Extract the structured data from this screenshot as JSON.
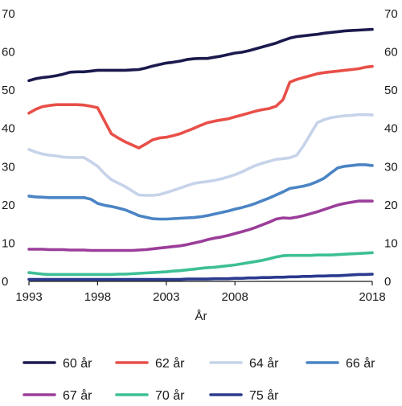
{
  "chart_data": {
    "type": "line",
    "xlabel": "År",
    "ylim": [
      0,
      70
    ],
    "yticks": [
      0,
      10,
      20,
      30,
      40,
      50,
      60,
      70
    ],
    "xticks": [
      1993,
      1998,
      2003,
      2008,
      2018
    ],
    "xrange": [
      1993,
      2018
    ],
    "grid": false,
    "legend_position": "bottom",
    "x": [
      1993,
      1993.5,
      1994,
      1994.5,
      1995,
      1995.5,
      1996,
      1996.5,
      1997,
      1997.5,
      1998,
      1998.5,
      1999,
      1999.5,
      2000,
      2000.5,
      2001,
      2001.5,
      2002,
      2002.5,
      2003,
      2003.5,
      2004,
      2004.5,
      2005,
      2005.5,
      2006,
      2006.5,
      2007,
      2007.5,
      2008,
      2008.5,
      2009,
      2009.5,
      2010,
      2010.5,
      2011,
      2011.5,
      2012,
      2012.5,
      2013,
      2013.5,
      2014,
      2014.5,
      2015,
      2015.5,
      2016,
      2016.5,
      2017,
      2017.5,
      2018
    ],
    "series": [
      {
        "name": "60 år",
        "color": "#1a1a4e",
        "values": [
          52.5,
          53,
          53.3,
          53.5,
          53.8,
          54.2,
          54.7,
          54.8,
          54.8,
          55,
          55.2,
          55.2,
          55.2,
          55.2,
          55.2,
          55.3,
          55.4,
          55.8,
          56.3,
          56.7,
          57.1,
          57.3,
          57.6,
          58,
          58.2,
          58.3,
          58.3,
          58.6,
          58.9,
          59.3,
          59.7,
          59.9,
          60.3,
          60.8,
          61.3,
          61.8,
          62.3,
          63,
          63.6,
          64,
          64.2,
          64.4,
          64.6,
          64.9,
          65.1,
          65.3,
          65.5,
          65.6,
          65.7,
          65.8,
          65.9
        ]
      },
      {
        "name": "62 år",
        "color": "#e84f48",
        "values": [
          44,
          45,
          45.7,
          46,
          46.2,
          46.2,
          46.2,
          46.2,
          46.1,
          45.8,
          45.4,
          42,
          38.6,
          37.5,
          36.5,
          35.7,
          34.9,
          35.9,
          37,
          37.5,
          37.7,
          38.1,
          38.6,
          39.3,
          40,
          40.8,
          41.5,
          41.9,
          42.2,
          42.5,
          43,
          43.5,
          44,
          44.5,
          44.9,
          45.2,
          45.8,
          47.5,
          52.1,
          52.8,
          53.3,
          53.8,
          54.3,
          54.6,
          54.8,
          55,
          55.2,
          55.4,
          55.6,
          56,
          56.2
        ]
      },
      {
        "name": "64 år",
        "color": "#c6d3ea",
        "values": [
          34.5,
          33.8,
          33.3,
          33,
          32.8,
          32.5,
          32.4,
          32.4,
          32.4,
          31.3,
          30.1,
          28.2,
          26.6,
          25.7,
          24.8,
          23.7,
          22.6,
          22.5,
          22.5,
          22.7,
          23.2,
          23.8,
          24.4,
          25,
          25.6,
          25.9,
          26.1,
          26.4,
          26.8,
          27.3,
          27.9,
          28.6,
          29.5,
          30.3,
          30.9,
          31.4,
          31.9,
          32.1,
          32.3,
          33,
          35.5,
          38.5,
          41.5,
          42.3,
          42.8,
          43.1,
          43.3,
          43.4,
          43.6,
          43.6,
          43.5
        ]
      },
      {
        "name": "66 år",
        "color": "#4a84c4",
        "values": [
          22.3,
          22.1,
          22,
          21.9,
          21.9,
          21.9,
          21.9,
          21.9,
          21.9,
          21.5,
          20.4,
          19.9,
          19.6,
          19.2,
          18.7,
          18,
          17.2,
          16.8,
          16.4,
          16.3,
          16.3,
          16.4,
          16.5,
          16.6,
          16.7,
          16.9,
          17.2,
          17.6,
          18,
          18.4,
          18.9,
          19.3,
          19.8,
          20.4,
          21.1,
          21.8,
          22.6,
          23.4,
          24.3,
          24.6,
          24.9,
          25.4,
          26.1,
          27,
          28.4,
          29.7,
          30.1,
          30.3,
          30.5,
          30.5,
          30.3
        ]
      },
      {
        "name": "67 år",
        "color": "#9b3d9a",
        "values": [
          8.4,
          8.4,
          8.4,
          8.3,
          8.3,
          8.3,
          8.2,
          8.2,
          8.2,
          8.1,
          8.1,
          8.1,
          8.1,
          8.1,
          8.1,
          8.1,
          8.2,
          8.3,
          8.5,
          8.7,
          8.9,
          9.1,
          9.3,
          9.6,
          10,
          10.4,
          10.9,
          11.3,
          11.6,
          12,
          12.5,
          13,
          13.5,
          14.1,
          14.8,
          15.5,
          16.3,
          16.6,
          16.5,
          16.8,
          17.2,
          17.7,
          18.2,
          18.8,
          19.4,
          20,
          20.4,
          20.7,
          21,
          21,
          21
        ]
      },
      {
        "name": "70 år",
        "color": "#3dbf95",
        "values": [
          2.3,
          2.1,
          1.9,
          1.8,
          1.8,
          1.8,
          1.8,
          1.8,
          1.8,
          1.8,
          1.8,
          1.8,
          1.8,
          1.9,
          1.9,
          2,
          2.1,
          2.2,
          2.3,
          2.4,
          2.5,
          2.7,
          2.8,
          3,
          3.2,
          3.4,
          3.6,
          3.7,
          3.9,
          4.1,
          4.3,
          4.6,
          4.9,
          5.2,
          5.5,
          5.9,
          6.4,
          6.7,
          6.8,
          6.8,
          6.8,
          6.8,
          6.9,
          6.9,
          6.9,
          7,
          7.1,
          7.2,
          7.3,
          7.4,
          7.5
        ]
      },
      {
        "name": "75 år",
        "color": "#2b3a8e",
        "values": [
          0.5,
          0.5,
          0.5,
          0.5,
          0.5,
          0.5,
          0.5,
          0.5,
          0.5,
          0.5,
          0.5,
          0.5,
          0.5,
          0.5,
          0.5,
          0.5,
          0.5,
          0.5,
          0.5,
          0.5,
          0.5,
          0.5,
          0.5,
          0.6,
          0.6,
          0.6,
          0.6,
          0.7,
          0.7,
          0.7,
          0.8,
          0.8,
          0.9,
          0.9,
          1,
          1,
          1.1,
          1.1,
          1.2,
          1.2,
          1.3,
          1.3,
          1.4,
          1.4,
          1.5,
          1.5,
          1.6,
          1.7,
          1.8,
          1.8,
          1.9
        ]
      }
    ]
  }
}
